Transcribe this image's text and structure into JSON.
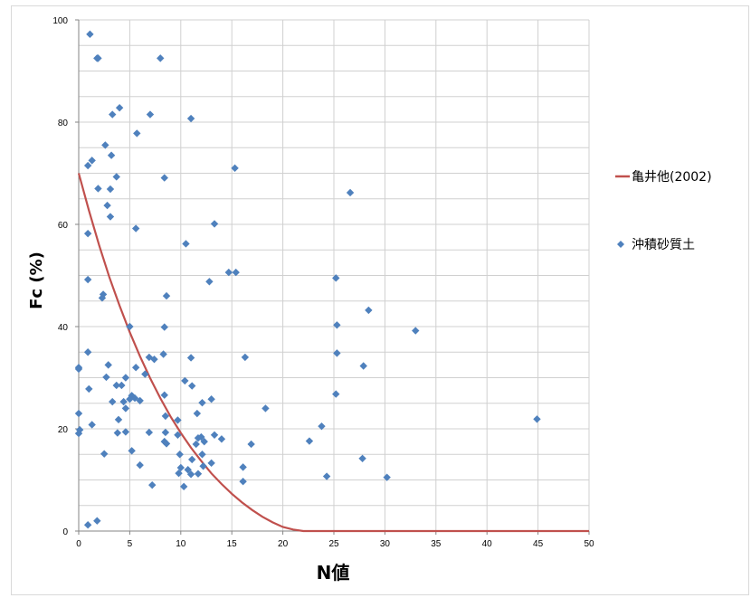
{
  "chart_data": {
    "type": "scatter",
    "title": "",
    "xlabel": "N値",
    "ylabel": "Fc (%)",
    "xlim": [
      0,
      50
    ],
    "ylim": [
      0,
      100
    ],
    "x_ticks": [
      "0",
      "5",
      "10",
      "15",
      "20",
      "25",
      "30",
      "35",
      "40",
      "45",
      "50"
    ],
    "y_ticks": [
      "0",
      "20",
      "40",
      "60",
      "80",
      "100"
    ],
    "grid": true,
    "legend_position": "right",
    "colors": {
      "curve": "#c0504d",
      "points": "#4f81bd",
      "grid": "#d0d0d0",
      "axis": "#868686"
    },
    "series": [
      {
        "name": "亀井他(2002)",
        "kind": "line",
        "x": [
          0,
          1,
          2,
          3,
          4,
          5,
          6,
          7,
          8,
          9,
          10,
          11,
          12,
          13,
          14,
          15,
          16,
          17,
          18,
          19,
          20,
          21,
          22,
          23,
          25,
          30,
          35,
          40,
          45,
          50
        ],
        "y": [
          70,
          62.7,
          55.9,
          49.7,
          44.1,
          38.9,
          34.2,
          29.9,
          26.0,
          22.4,
          19.2,
          16.3,
          13.7,
          11.3,
          9.2,
          7.3,
          5.6,
          4.1,
          2.8,
          1.7,
          0.8,
          0.3,
          0,
          0,
          0,
          0,
          0,
          0,
          0,
          0
        ]
      },
      {
        "name": "沖積砂質土",
        "kind": "scatter",
        "points": [
          [
            1.1,
            97.2
          ],
          [
            1.8,
            92.5
          ],
          [
            1.9,
            92.5
          ],
          [
            8.0,
            92.5
          ],
          [
            3.3,
            81.5
          ],
          [
            4.0,
            82.8
          ],
          [
            7.0,
            81.5
          ],
          [
            11.0,
            80.7
          ],
          [
            5.7,
            77.8
          ],
          [
            2.6,
            75.5
          ],
          [
            3.2,
            73.5
          ],
          [
            1.3,
            72.5
          ],
          [
            0.9,
            71.5
          ],
          [
            15.3,
            71.0
          ],
          [
            3.7,
            69.3
          ],
          [
            8.4,
            69.1
          ],
          [
            1.9,
            67.0
          ],
          [
            3.1,
            66.9
          ],
          [
            26.6,
            66.2
          ],
          [
            2.8,
            63.7
          ],
          [
            3.1,
            61.5
          ],
          [
            13.3,
            60.1
          ],
          [
            5.6,
            59.2
          ],
          [
            0.9,
            58.2
          ],
          [
            10.5,
            56.2
          ],
          [
            14.7,
            50.6
          ],
          [
            15.4,
            50.6
          ],
          [
            25.2,
            49.5
          ],
          [
            0.9,
            49.2
          ],
          [
            12.8,
            48.8
          ],
          [
            2.4,
            46.3
          ],
          [
            2.3,
            45.6
          ],
          [
            8.6,
            46.0
          ],
          [
            28.4,
            43.2
          ],
          [
            5.0,
            40.0
          ],
          [
            8.4,
            39.9
          ],
          [
            25.3,
            40.3
          ],
          [
            33.0,
            39.2
          ],
          [
            0.9,
            35.0
          ],
          [
            8.3,
            34.6
          ],
          [
            16.3,
            34.0
          ],
          [
            25.3,
            34.8
          ],
          [
            6.9,
            34.0
          ],
          [
            7.4,
            33.6
          ],
          [
            11.0,
            33.9
          ],
          [
            0.0,
            32.0
          ],
          [
            0.0,
            31.7
          ],
          [
            2.9,
            32.5
          ],
          [
            5.6,
            32.0
          ],
          [
            6.5,
            30.7
          ],
          [
            27.9,
            32.3
          ],
          [
            2.7,
            30.1
          ],
          [
            4.6,
            30.0
          ],
          [
            10.4,
            29.4
          ],
          [
            11.1,
            28.4
          ],
          [
            3.7,
            28.5
          ],
          [
            4.2,
            28.5
          ],
          [
            1.0,
            27.8
          ],
          [
            8.4,
            26.6
          ],
          [
            25.2,
            26.8
          ],
          [
            5.2,
            26.5
          ],
          [
            5.5,
            26.0
          ],
          [
            5.0,
            25.8
          ],
          [
            3.3,
            25.3
          ],
          [
            4.4,
            25.3
          ],
          [
            6.0,
            25.5
          ],
          [
            13.0,
            25.8
          ],
          [
            12.1,
            25.1
          ],
          [
            4.6,
            24.0
          ],
          [
            18.3,
            24.0
          ],
          [
            3.9,
            21.8
          ],
          [
            0.0,
            23.0
          ],
          [
            11.6,
            23.0
          ],
          [
            8.5,
            22.5
          ],
          [
            9.7,
            21.7
          ],
          [
            44.9,
            21.9
          ],
          [
            1.3,
            20.8
          ],
          [
            23.8,
            20.5
          ],
          [
            0.1,
            19.8
          ],
          [
            0.0,
            19.1
          ],
          [
            3.8,
            19.2
          ],
          [
            4.6,
            19.4
          ],
          [
            6.9,
            19.3
          ],
          [
            8.5,
            19.3
          ],
          [
            9.7,
            18.8
          ],
          [
            11.7,
            18.2
          ],
          [
            12.0,
            18.4
          ],
          [
            13.3,
            18.8
          ],
          [
            14.0,
            18.0
          ],
          [
            8.4,
            17.5
          ],
          [
            8.6,
            17.1
          ],
          [
            11.5,
            17.0
          ],
          [
            12.3,
            17.5
          ],
          [
            16.9,
            17.0
          ],
          [
            22.6,
            17.6
          ],
          [
            5.2,
            15.7
          ],
          [
            2.5,
            15.1
          ],
          [
            9.9,
            15.0
          ],
          [
            12.1,
            15.0
          ],
          [
            11.1,
            14.0
          ],
          [
            27.8,
            14.2
          ],
          [
            6.0,
            12.9
          ],
          [
            12.2,
            12.7
          ],
          [
            13.0,
            13.3
          ],
          [
            16.1,
            12.5
          ],
          [
            10.0,
            12.4
          ],
          [
            10.7,
            12.0
          ],
          [
            9.8,
            11.3
          ],
          [
            11.0,
            11.1
          ],
          [
            11.7,
            11.2
          ],
          [
            24.3,
            10.7
          ],
          [
            30.2,
            10.5
          ],
          [
            16.1,
            9.7
          ],
          [
            7.2,
            9.0
          ],
          [
            10.3,
            8.7
          ],
          [
            1.8,
            2.0
          ],
          [
            0.9,
            1.2
          ]
        ]
      }
    ]
  }
}
